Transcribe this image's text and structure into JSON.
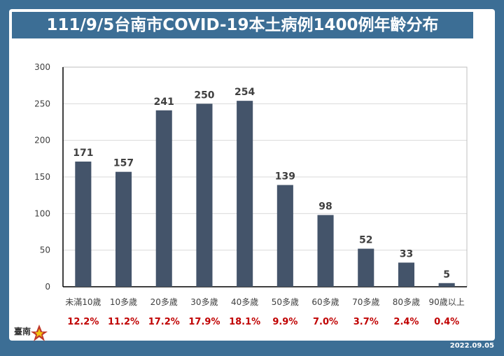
{
  "title": "111/9/5台南市COVID-19本土病例1400例年齡分布",
  "date": "2022.09.05",
  "logo": {
    "icon": "tainan-city-logo-icon",
    "text": "臺南"
  },
  "colors": {
    "bar": "#44546a",
    "percent": "#c00000",
    "frame": "#3c6e95"
  },
  "chart_data": {
    "type": "bar",
    "categories": [
      "未滿10歲",
      "10多歲",
      "20多歲",
      "30多歲",
      "40多歲",
      "50多歲",
      "60多歲",
      "70多歲",
      "80多歲",
      "90歲以上"
    ],
    "values": [
      171,
      157,
      241,
      250,
      254,
      139,
      98,
      52,
      33,
      5
    ],
    "percentages": [
      "12.2%",
      "11.2%",
      "17.2%",
      "17.9%",
      "18.1%",
      "9.9%",
      "7.0%",
      "3.7%",
      "2.4%",
      "0.4%"
    ],
    "ylim": [
      0,
      300
    ],
    "yticks": [
      0,
      50,
      100,
      150,
      200,
      250,
      300
    ],
    "grid": true,
    "xlabel": "",
    "ylabel": ""
  }
}
